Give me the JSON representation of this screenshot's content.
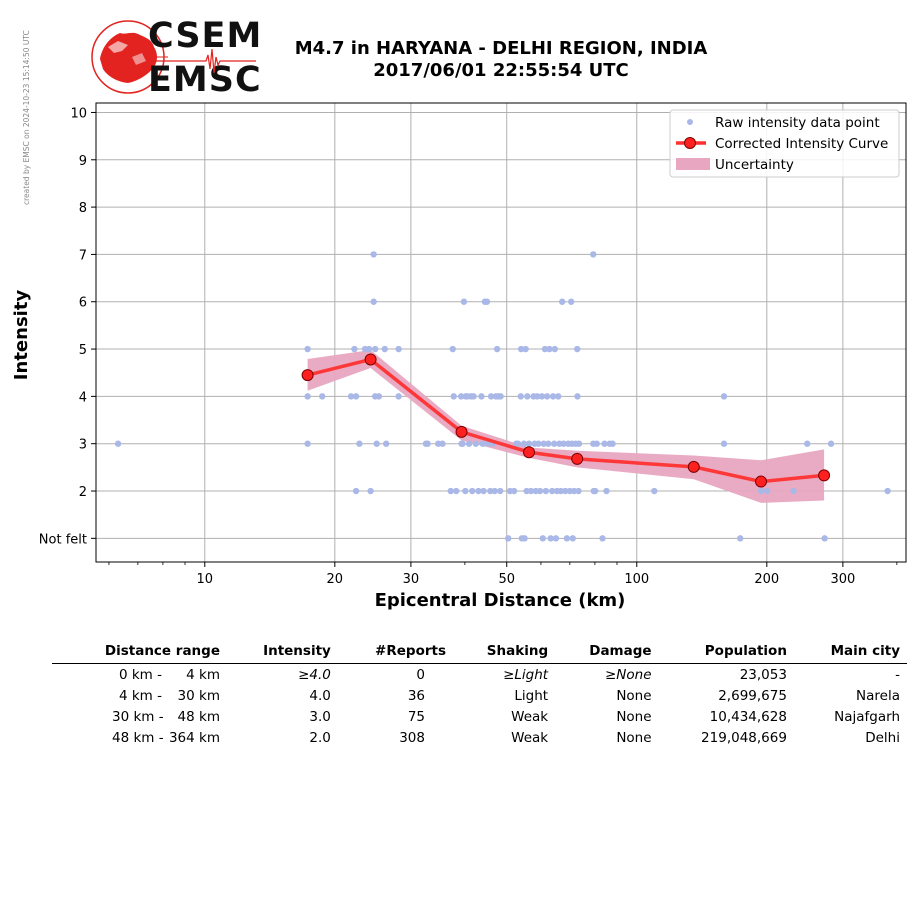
{
  "watermark": "created by EMSC on 2024-10-23 15:14:50 UTC",
  "logo": {
    "line1": "CSEM",
    "line2": "EMSC",
    "color": "#e3231f"
  },
  "header": {
    "title_line1": "M4.7 in HARYANA - DELHI REGION, INDIA",
    "title_line2": "2017/06/01 22:55:54 UTC"
  },
  "chart_data": {
    "type": "scatter",
    "title": "M4.7 in HARYANA - DELHI REGION, INDIA 2017/06/01 22:55:54 UTC",
    "xlabel": "Epicentral Distance (km)",
    "ylabel": "Intensity",
    "xscale": "log",
    "xlim": [
      5.6,
      420
    ],
    "ylim": [
      0.5,
      10.2
    ],
    "x_ticks": [
      10,
      20,
      30,
      50,
      100,
      200,
      300
    ],
    "x_ticklabels": [
      "10",
      "20",
      "30",
      "50",
      "100",
      "200",
      "300"
    ],
    "y_ticks": [
      1,
      2,
      3,
      4,
      5,
      6,
      7,
      8,
      9,
      10
    ],
    "y_ticklabels": [
      "Not felt",
      "2",
      "3",
      "4",
      "5",
      "6",
      "7",
      "8",
      "9",
      "10"
    ],
    "grid": true,
    "legend_position": "top-right",
    "series": [
      {
        "name": "Raw intensity data point",
        "style": "scatter",
        "color": "#aab8e8",
        "points": [
          [
            6.3,
            3
          ],
          [
            17.3,
            5
          ],
          [
            17.3,
            4
          ],
          [
            17.3,
            3
          ],
          [
            18.7,
            4
          ],
          [
            21.8,
            4
          ],
          [
            22.4,
            4
          ],
          [
            22.2,
            5
          ],
          [
            22.4,
            2
          ],
          [
            22.8,
            3
          ],
          [
            23.5,
            5
          ],
          [
            24.0,
            5
          ],
          [
            24.2,
            2
          ],
          [
            24.6,
            7
          ],
          [
            24.6,
            6
          ],
          [
            24.8,
            5
          ],
          [
            24.8,
            4
          ],
          [
            25.0,
            3
          ],
          [
            25.3,
            4
          ],
          [
            26.1,
            5
          ],
          [
            26.3,
            3
          ],
          [
            28.1,
            5
          ],
          [
            28.1,
            4
          ],
          [
            32.5,
            3
          ],
          [
            32.8,
            3
          ],
          [
            34.7,
            3
          ],
          [
            35.5,
            3
          ],
          [
            37.1,
            2
          ],
          [
            37.5,
            5
          ],
          [
            37.7,
            4
          ],
          [
            38.2,
            2
          ],
          [
            39.2,
            4
          ],
          [
            39.3,
            3
          ],
          [
            39.5,
            3
          ],
          [
            39.8,
            6
          ],
          [
            40.1,
            2
          ],
          [
            40.2,
            4
          ],
          [
            40.5,
            4
          ],
          [
            40.9,
            3
          ],
          [
            41.3,
            4
          ],
          [
            41.6,
            2
          ],
          [
            41.9,
            4
          ],
          [
            42.4,
            3
          ],
          [
            43.0,
            2
          ],
          [
            43.7,
            4
          ],
          [
            44.0,
            3
          ],
          [
            44.2,
            2
          ],
          [
            44.5,
            6
          ],
          [
            45.0,
            6
          ],
          [
            45.4,
            3
          ],
          [
            45.8,
            2
          ],
          [
            46.0,
            4
          ],
          [
            46.4,
            3
          ],
          [
            46.9,
            2
          ],
          [
            47.2,
            4
          ],
          [
            47.5,
            5
          ],
          [
            47.8,
            4
          ],
          [
            48.3,
            2
          ],
          [
            48.4,
            4
          ],
          [
            50.4,
            1
          ],
          [
            50.9,
            2
          ],
          [
            52.0,
            2
          ],
          [
            52.6,
            3
          ],
          [
            53.1,
            3
          ],
          [
            53.9,
            4
          ],
          [
            54.0,
            5
          ],
          [
            54.2,
            1
          ],
          [
            54.8,
            3
          ],
          [
            55.0,
            1
          ],
          [
            55.3,
            5
          ],
          [
            55.6,
            2
          ],
          [
            55.8,
            4
          ],
          [
            56.3,
            3
          ],
          [
            56.9,
            2
          ],
          [
            57.7,
            4
          ],
          [
            58.0,
            3
          ],
          [
            58.4,
            2
          ],
          [
            58.8,
            4
          ],
          [
            59.2,
            3
          ],
          [
            59.7,
            2
          ],
          [
            60.3,
            4
          ],
          [
            60.6,
            1
          ],
          [
            60.9,
            3
          ],
          [
            61.3,
            5
          ],
          [
            61.6,
            2
          ],
          [
            62.0,
            4
          ],
          [
            62.4,
            3
          ],
          [
            62.8,
            5
          ],
          [
            63.2,
            1
          ],
          [
            63.7,
            2
          ],
          [
            64.0,
            4
          ],
          [
            64.4,
            3
          ],
          [
            64.6,
            5
          ],
          [
            65.0,
            1
          ],
          [
            65.4,
            2
          ],
          [
            65.8,
            4
          ],
          [
            66.2,
            3
          ],
          [
            66.7,
            2
          ],
          [
            67.2,
            6
          ],
          [
            67.7,
            3
          ],
          [
            68.3,
            2
          ],
          [
            68.9,
            1
          ],
          [
            69.4,
            3
          ],
          [
            70.0,
            2
          ],
          [
            70.5,
            6
          ],
          [
            70.8,
            3
          ],
          [
            71.1,
            1
          ],
          [
            71.6,
            2
          ],
          [
            72.2,
            3
          ],
          [
            72.8,
            5
          ],
          [
            72.9,
            4
          ],
          [
            73.3,
            2
          ],
          [
            73.5,
            3
          ],
          [
            79.3,
            7
          ],
          [
            79.3,
            3
          ],
          [
            80.1,
            2
          ],
          [
            79.5,
            2
          ],
          [
            80.8,
            3
          ],
          [
            83.3,
            1
          ],
          [
            84.2,
            3
          ],
          [
            85.1,
            2
          ],
          [
            86.6,
            3
          ],
          [
            87.9,
            3
          ],
          [
            109.8,
            2
          ],
          [
            159.2,
            4
          ],
          [
            159.2,
            3
          ],
          [
            173.6,
            1
          ],
          [
            193.9,
            2
          ],
          [
            200.4,
            2
          ],
          [
            230.6,
            2
          ],
          [
            248.1,
            3
          ],
          [
            272.2,
            1
          ],
          [
            281.7,
            3
          ],
          [
            380.8,
            2
          ]
        ]
      },
      {
        "name": "Corrected Intensity Curve",
        "style": "line-marker",
        "color": "#ff3030",
        "x": [
          17.3,
          24.2,
          39.3,
          56.3,
          72.8,
          135.5,
          193.9,
          271.4
        ],
        "y": [
          4.45,
          4.78,
          3.25,
          2.82,
          2.68,
          2.51,
          2.2,
          2.33
        ]
      },
      {
        "name": "Uncertainty",
        "style": "band",
        "color": "#e8a6c0",
        "x": [
          17.3,
          24.2,
          39.3,
          56.3,
          72.8,
          135.5,
          193.9,
          271.4
        ],
        "lower": [
          4.12,
          4.6,
          3.07,
          2.7,
          2.5,
          2.25,
          1.75,
          1.8
        ],
        "upper": [
          4.79,
          4.98,
          3.38,
          2.92,
          2.85,
          2.75,
          2.65,
          2.88
        ]
      }
    ]
  },
  "table": {
    "headers": [
      "Distance range",
      "Intensity",
      "#Reports",
      "Shaking",
      "Damage",
      "Population",
      "Main city"
    ],
    "rows": [
      {
        "range_a": "0 km -",
        "range_b": "4 km",
        "intensity": "≥4.0",
        "reports": "0",
        "shaking": "≥Light",
        "damage": "≥None",
        "population": "23,053",
        "city": "-"
      },
      {
        "range_a": "4 km -",
        "range_b": "30 km",
        "intensity": "4.0",
        "reports": "36",
        "shaking": "Light",
        "damage": "None",
        "population": "2,699,675",
        "city": "Narela"
      },
      {
        "range_a": "30 km -",
        "range_b": "48 km",
        "intensity": "3.0",
        "reports": "75",
        "shaking": "Weak",
        "damage": "None",
        "population": "10,434,628",
        "city": "Najafgarh"
      },
      {
        "range_a": "48 km -",
        "range_b": "364 km",
        "intensity": "2.0",
        "reports": "308",
        "shaking": "Weak",
        "damage": "None",
        "population": "219,048,669",
        "city": "Delhi"
      }
    ]
  }
}
